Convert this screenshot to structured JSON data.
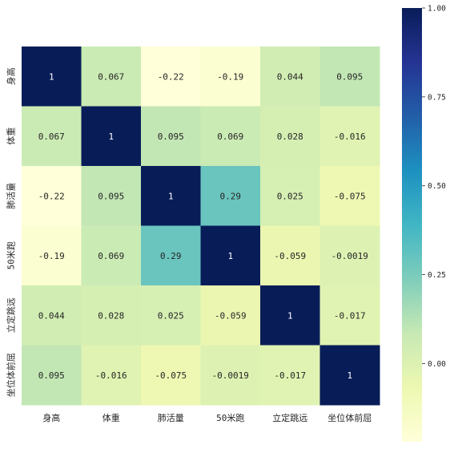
{
  "chart_data": {
    "type": "heatmap",
    "title": "",
    "xlabel": "",
    "ylabel": "",
    "x_labels": [
      "身高",
      "体重",
      "肺活量",
      "50米跑",
      "立定跳远",
      "坐位体前屈"
    ],
    "y_labels": [
      "身高",
      "体重",
      "肺活量",
      "50米跑",
      "立定跳远",
      "坐位体前屈"
    ],
    "values": [
      [
        1,
        0.067,
        -0.22,
        -0.19,
        0.044,
        0.095
      ],
      [
        0.067,
        1,
        0.095,
        0.069,
        0.028,
        -0.016
      ],
      [
        -0.22,
        0.095,
        1,
        0.29,
        0.025,
        -0.075
      ],
      [
        -0.19,
        0.069,
        0.29,
        1,
        -0.059,
        -0.0019
      ],
      [
        0.044,
        0.028,
        0.025,
        -0.059,
        1,
        -0.017
      ],
      [
        0.095,
        -0.016,
        -0.075,
        -0.0019,
        -0.017,
        1
      ]
    ],
    "cell_labels": [
      [
        "1",
        "0.067",
        "-0.22",
        "-0.19",
        "0.044",
        "0.095"
      ],
      [
        "0.067",
        "1",
        "0.095",
        "0.069",
        "0.028",
        "-0.016"
      ],
      [
        "-0.22",
        "0.095",
        "1",
        "0.29",
        "0.025",
        "-0.075"
      ],
      [
        "-0.19",
        "0.069",
        "0.29",
        "1",
        "-0.059",
        "-0.0019"
      ],
      [
        "0.044",
        "0.028",
        "0.025",
        "-0.059",
        "1",
        "-0.017"
      ],
      [
        "0.095",
        "-0.016",
        "-0.075",
        "-0.0019",
        "-0.017",
        "1"
      ]
    ],
    "colormap": "YlGnBu",
    "vmin": -0.22,
    "vmax": 1,
    "colorbar": {
      "ticks": [
        0.0,
        0.25,
        0.5,
        0.75,
        1.0
      ],
      "tick_labels": [
        "0.00",
        "0.25",
        "0.50",
        "0.75",
        "1.00"
      ],
      "placement": "right"
    },
    "annotation_text_colors": {
      "dark": "#262626",
      "light": "#ffffff"
    },
    "grid": false,
    "legend": "colorbar"
  }
}
